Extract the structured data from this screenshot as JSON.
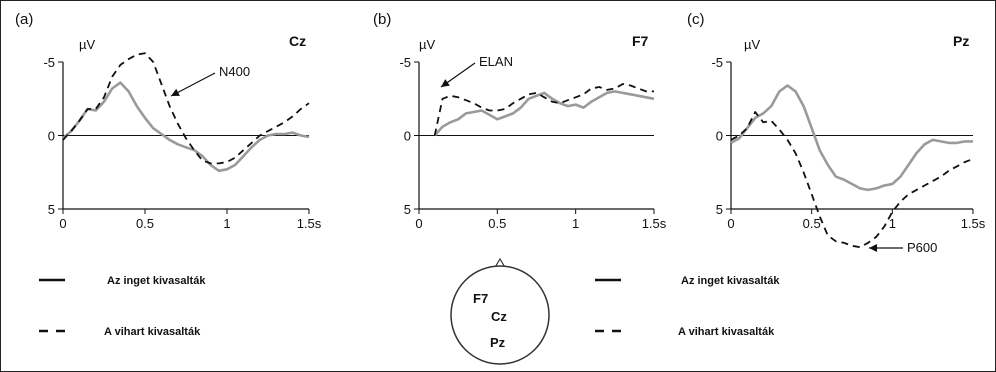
{
  "chart_data": [
    {
      "type": "line",
      "panel_label": "(a)",
      "channel": "Cz",
      "unit": "µV",
      "x_ticks": [
        "0",
        "0.5",
        "1",
        "1.5s"
      ],
      "y_ticks": [
        "-5",
        "0",
        "5"
      ],
      "xlim": [
        0,
        1.5
      ],
      "ylim": [
        5,
        -5
      ],
      "annotation": "N400",
      "series": [
        {
          "style": "solid",
          "color": "#9a9a9a",
          "x": [
            0,
            0.05,
            0.1,
            0.15,
            0.2,
            0.25,
            0.3,
            0.35,
            0.4,
            0.45,
            0.5,
            0.55,
            0.6,
            0.65,
            0.7,
            0.75,
            0.8,
            0.85,
            0.9,
            0.95,
            1.0,
            1.05,
            1.1,
            1.15,
            1.2,
            1.25,
            1.3,
            1.35,
            1.4,
            1.45,
            1.5
          ],
          "y": [
            0.2,
            -0.3,
            -1.0,
            -1.8,
            -1.7,
            -2.3,
            -3.2,
            -3.6,
            -3.0,
            -2.0,
            -1.2,
            -0.5,
            -0.1,
            0.3,
            0.6,
            0.8,
            1.0,
            1.4,
            2.0,
            2.4,
            2.3,
            2.0,
            1.4,
            0.8,
            0.3,
            0.0,
            -0.1,
            -0.1,
            -0.2,
            0.0,
            0.1
          ]
        },
        {
          "style": "dashed",
          "color": "#111111",
          "x": [
            0,
            0.05,
            0.1,
            0.15,
            0.2,
            0.25,
            0.3,
            0.35,
            0.4,
            0.45,
            0.5,
            0.55,
            0.6,
            0.65,
            0.7,
            0.75,
            0.8,
            0.85,
            0.9,
            0.95,
            1.0,
            1.05,
            1.1,
            1.15,
            1.2,
            1.25,
            1.3,
            1.35,
            1.4,
            1.45,
            1.5
          ],
          "y": [
            0.3,
            -0.3,
            -1.0,
            -1.8,
            -1.8,
            -2.6,
            -4.0,
            -4.8,
            -5.2,
            -5.5,
            -5.6,
            -5.0,
            -3.5,
            -2.0,
            -0.8,
            0.2,
            1.0,
            1.7,
            1.9,
            1.9,
            1.8,
            1.5,
            1.0,
            0.5,
            0.0,
            -0.3,
            -0.6,
            -0.9,
            -1.3,
            -1.8,
            -2.2
          ]
        }
      ]
    },
    {
      "type": "line",
      "panel_label": "(b)",
      "channel": "F7",
      "unit": "µV",
      "x_ticks": [
        "0",
        "0.5",
        "1",
        "1.5s"
      ],
      "y_ticks": [
        "-5",
        "0",
        "5"
      ],
      "xlim": [
        0,
        1.5
      ],
      "ylim": [
        5,
        -5
      ],
      "annotation": "ELAN",
      "series": [
        {
          "style": "solid",
          "color": "#9a9a9a",
          "x": [
            0.1,
            0.15,
            0.2,
            0.25,
            0.3,
            0.35,
            0.4,
            0.45,
            0.5,
            0.55,
            0.6,
            0.65,
            0.7,
            0.75,
            0.8,
            0.85,
            0.9,
            0.95,
            1.0,
            1.05,
            1.1,
            1.15,
            1.2,
            1.25,
            1.3,
            1.35,
            1.4,
            1.45,
            1.5
          ],
          "y": [
            0.0,
            -0.6,
            -0.9,
            -1.1,
            -1.5,
            -1.6,
            -1.7,
            -1.4,
            -1.1,
            -1.3,
            -1.5,
            -1.9,
            -2.5,
            -2.7,
            -2.9,
            -2.5,
            -2.2,
            -2.0,
            -2.1,
            -1.9,
            -2.3,
            -2.6,
            -2.9,
            -3.0,
            -2.9,
            -2.8,
            -2.7,
            -2.6,
            -2.5
          ]
        },
        {
          "style": "dashed",
          "color": "#111111",
          "x": [
            0.1,
            0.15,
            0.2,
            0.25,
            0.3,
            0.35,
            0.4,
            0.45,
            0.5,
            0.55,
            0.6,
            0.65,
            0.7,
            0.75,
            0.8,
            0.85,
            0.9,
            0.95,
            1.0,
            1.05,
            1.1,
            1.15,
            1.2,
            1.25,
            1.3,
            1.35,
            1.4,
            1.45,
            1.5
          ],
          "y": [
            0.0,
            -2.5,
            -2.7,
            -2.6,
            -2.4,
            -2.2,
            -1.9,
            -1.7,
            -1.7,
            -1.8,
            -2.2,
            -2.5,
            -2.8,
            -2.9,
            -2.6,
            -2.3,
            -2.2,
            -2.4,
            -2.6,
            -2.8,
            -3.2,
            -3.3,
            -3.1,
            -3.2,
            -3.5,
            -3.4,
            -3.2,
            -3.0,
            -3.0
          ]
        }
      ]
    },
    {
      "type": "line",
      "panel_label": "(c)",
      "channel": "Pz",
      "unit": "µV",
      "x_ticks": [
        "0",
        "0.5",
        "1",
        "1.5s"
      ],
      "y_ticks": [
        "-5",
        "0",
        "5"
      ],
      "xlim": [
        0,
        1.5
      ],
      "ylim": [
        5,
        -5
      ],
      "annotation": "P600",
      "series": [
        {
          "style": "solid",
          "color": "#9a9a9a",
          "x": [
            0,
            0.05,
            0.1,
            0.15,
            0.2,
            0.25,
            0.3,
            0.35,
            0.4,
            0.45,
            0.5,
            0.55,
            0.6,
            0.65,
            0.7,
            0.75,
            0.8,
            0.85,
            0.9,
            0.95,
            1.0,
            1.05,
            1.1,
            1.15,
            1.2,
            1.25,
            1.3,
            1.35,
            1.4,
            1.45,
            1.5
          ],
          "y": [
            0.5,
            0.2,
            -0.5,
            -1.2,
            -1.5,
            -2.0,
            -3.0,
            -3.4,
            -3.0,
            -2.0,
            -0.5,
            1.0,
            2.0,
            2.8,
            3.0,
            3.3,
            3.6,
            3.7,
            3.6,
            3.4,
            3.3,
            2.8,
            2.0,
            1.2,
            0.6,
            0.3,
            0.4,
            0.5,
            0.5,
            0.4,
            0.4
          ]
        },
        {
          "style": "dashed",
          "color": "#111111",
          "x": [
            0,
            0.05,
            0.1,
            0.15,
            0.2,
            0.25,
            0.3,
            0.35,
            0.4,
            0.45,
            0.5,
            0.55,
            0.6,
            0.65,
            0.7,
            0.75,
            0.8,
            0.85,
            0.9,
            0.95,
            1.0,
            1.05,
            1.1,
            1.15,
            1.2,
            1.25,
            1.3,
            1.35,
            1.4,
            1.45,
            1.5
          ],
          "y": [
            0.3,
            0.0,
            -0.5,
            -1.6,
            -0.9,
            -1.0,
            -0.4,
            0.3,
            1.2,
            2.5,
            4.0,
            5.5,
            6.8,
            7.2,
            7.3,
            7.5,
            7.6,
            7.3,
            6.9,
            6.2,
            5.2,
            4.5,
            4.0,
            3.7,
            3.4,
            3.1,
            2.8,
            2.4,
            2.1,
            1.8,
            1.6
          ]
        }
      ]
    }
  ],
  "legend_left": [
    {
      "style": "solid",
      "label": "Az inget kivasalták"
    },
    {
      "style": "dashed",
      "label": "A vihart kivasalták"
    }
  ],
  "legend_right": [
    {
      "style": "solid",
      "label": "Az inget kivasalták"
    },
    {
      "style": "dashed",
      "label": "A vihart kivasalták"
    }
  ],
  "electrode_map": {
    "labels": [
      "F7",
      "Cz",
      "Pz"
    ]
  }
}
